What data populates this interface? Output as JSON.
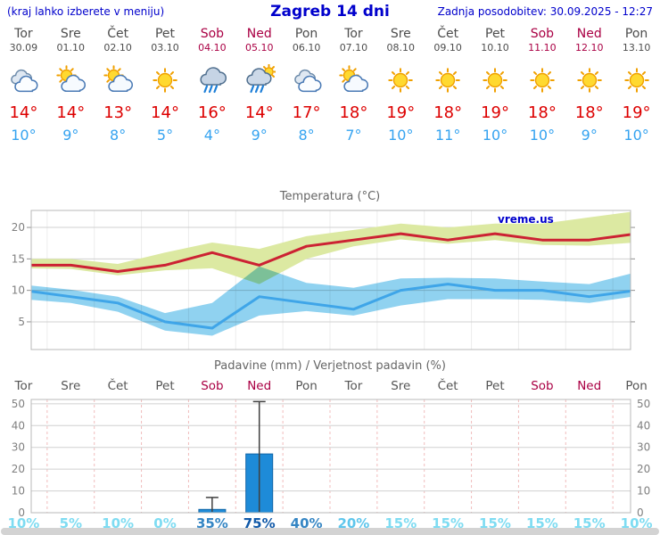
{
  "header": {
    "menu_hint": "(kraj lahko izberete v meniju)",
    "title": "Zagreb 14 dni",
    "last_update": "Zadnja posodobitev: 30.09.2025 - 12:27"
  },
  "colors": {
    "link_blue": "#0000cc",
    "weekday": "#4d4d4d",
    "weekend": "#aa0044",
    "temp_max": "#dd0000",
    "temp_min": "#35a3f0",
    "chart_title": "#666666"
  },
  "days": [
    {
      "name": "Tor",
      "date": "30.09",
      "weekend": false,
      "icon": "cloudy",
      "tmax": 14,
      "tmin": 10
    },
    {
      "name": "Sre",
      "date": "01.10",
      "weekend": false,
      "icon": "partly-cloudy",
      "tmax": 14,
      "tmin": 9
    },
    {
      "name": "Čet",
      "date": "02.10",
      "weekend": false,
      "icon": "partly-cloudy",
      "tmax": 13,
      "tmin": 8
    },
    {
      "name": "Pet",
      "date": "03.10",
      "weekend": false,
      "icon": "sunny",
      "tmax": 14,
      "tmin": 5
    },
    {
      "name": "Sob",
      "date": "04.10",
      "weekend": true,
      "icon": "rain",
      "tmax": 16,
      "tmin": 4
    },
    {
      "name": "Ned",
      "date": "05.10",
      "weekend": true,
      "icon": "sun-rain",
      "tmax": 14,
      "tmin": 9
    },
    {
      "name": "Pon",
      "date": "06.10",
      "weekend": false,
      "icon": "cloudy",
      "tmax": 17,
      "tmin": 8
    },
    {
      "name": "Tor",
      "date": "07.10",
      "weekend": false,
      "icon": "partly-cloudy",
      "tmax": 18,
      "tmin": 7
    },
    {
      "name": "Sre",
      "date": "08.10",
      "weekend": false,
      "icon": "sunny",
      "tmax": 19,
      "tmin": 10
    },
    {
      "name": "Čet",
      "date": "09.10",
      "weekend": false,
      "icon": "sunny",
      "tmax": 18,
      "tmin": 11
    },
    {
      "name": "Pet",
      "date": "10.10",
      "weekend": false,
      "icon": "sunny",
      "tmax": 19,
      "tmin": 10
    },
    {
      "name": "Sob",
      "date": "11.10",
      "weekend": true,
      "icon": "sunny",
      "tmax": 18,
      "tmin": 10
    },
    {
      "name": "Ned",
      "date": "12.10",
      "weekend": true,
      "icon": "sunny",
      "tmax": 18,
      "tmin": 9
    },
    {
      "name": "Pon",
      "date": "13.10",
      "weekend": false,
      "icon": "sunny",
      "tmax": 19,
      "tmin": 10
    }
  ],
  "chart_data": [
    {
      "type": "line",
      "title": "Temperatura (°C)",
      "x": [
        "Tor 30.09",
        "Sre 01.10",
        "Čet 02.10",
        "Pet 03.10",
        "Sob 04.10",
        "Ned 05.10",
        "Pon 06.10",
        "Tor 07.10",
        "Sre 08.10",
        "Čet 09.10",
        "Pet 10.10",
        "Sob 11.10",
        "Ned 12.10",
        "Pon 13.10"
      ],
      "ylim": [
        0.6,
        22.7
      ],
      "yticks": [
        5,
        10,
        15,
        20
      ],
      "grid": true,
      "watermark": "vreme.us",
      "series": [
        {
          "name": "max-temp",
          "color": "#cc2233",
          "values": [
            14,
            14,
            13,
            14,
            16,
            14,
            17,
            18,
            19,
            18,
            19,
            18,
            18,
            19
          ]
        },
        {
          "name": "min-temp",
          "color": "#3fa5e8",
          "values": [
            10,
            9,
            8,
            5,
            4,
            9,
            8,
            7,
            10,
            11,
            10,
            10,
            9,
            10
          ]
        }
      ],
      "bands": [
        {
          "name": "max-temp-range",
          "color": "#dce9a2",
          "upper": [
            15,
            15,
            14.2,
            16,
            17.6,
            16.6,
            18.6,
            19.6,
            20.6,
            20,
            20.6,
            20.6,
            21.6,
            22.6
          ],
          "lower": [
            13.5,
            13.4,
            12.4,
            13.2,
            13.5,
            11,
            15,
            17,
            18.1,
            17.4,
            18,
            17.2,
            17.1,
            17.6
          ]
        },
        {
          "name": "min-temp-range",
          "color": "#90d2f0",
          "upper": [
            10.9,
            10.1,
            9,
            6.4,
            8,
            13.8,
            11.2,
            10.4,
            11.9,
            12,
            11.9,
            11.4,
            11,
            12.9
          ],
          "lower": [
            8.6,
            8,
            6.6,
            3.6,
            2.8,
            6,
            6.7,
            6,
            7.6,
            8.6,
            8.6,
            8.5,
            8,
            9.1
          ]
        }
      ]
    },
    {
      "type": "bar",
      "title": "Padavine (mm) / Verjetnost padavin (%)",
      "categories": [
        "Tor",
        "Sre",
        "Čet",
        "Pet",
        "Sob",
        "Ned",
        "Pon",
        "Tor",
        "Sre",
        "Čet",
        "Pet",
        "Sob",
        "Ned",
        "Pon"
      ],
      "weekend": [
        false,
        false,
        false,
        false,
        true,
        true,
        false,
        false,
        false,
        false,
        false,
        true,
        true,
        false
      ],
      "values": [
        0,
        0,
        0,
        0,
        1.5,
        27,
        0,
        0,
        0,
        0,
        0,
        0,
        0,
        0
      ],
      "whisker_max": [
        0,
        0,
        0,
        0,
        7,
        51,
        0,
        0,
        0,
        0,
        0,
        0,
        0,
        0
      ],
      "probabilities": [
        10,
        5,
        10,
        0,
        35,
        75,
        40,
        20,
        15,
        15,
        15,
        15,
        15,
        10
      ],
      "prob_colors": [
        "#7edcf2",
        "#7edcf2",
        "#7edcf2",
        "#7edcf2",
        "#3586c4",
        "#1159a8",
        "#3586c4",
        "#5ec6ec",
        "#7edcf2",
        "#7edcf2",
        "#7edcf2",
        "#7edcf2",
        "#7edcf2",
        "#7edcf2"
      ],
      "bar_color": "#1e8bd8",
      "ylim": [
        0,
        52
      ],
      "yticks": [
        0,
        10,
        20,
        30,
        40,
        50
      ],
      "grid": true
    }
  ]
}
